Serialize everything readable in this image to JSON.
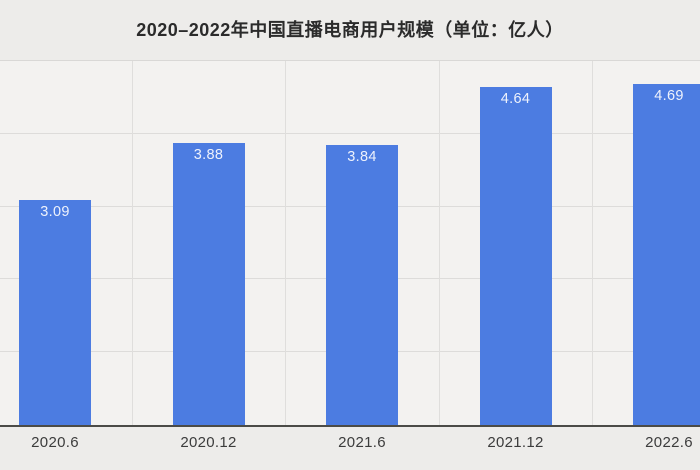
{
  "chart_data": {
    "type": "bar",
    "title": "2020–2022年中国直播电商用户规模（单位：亿人）",
    "unit": "亿人",
    "categories": [
      "2020.6",
      "2020.12",
      "2021.6",
      "2021.12",
      "2022.6"
    ],
    "values": [
      3.09,
      3.88,
      3.84,
      4.64,
      4.69
    ],
    "value_labels": [
      "3.09",
      "3.88",
      "3.84",
      "4.64",
      "4.69"
    ],
    "xlabel": "",
    "ylabel": "",
    "ylim": [
      0,
      5
    ],
    "grid": true,
    "gridline_step": 1,
    "legend": "none",
    "colors": {
      "bar": "#4c7ce1",
      "bar_value_label": "#eef2fc",
      "outer_background": "#edecea",
      "plot_background": "#f3f2f0",
      "gridline": "#dddcda",
      "axis_line": "#4b4b47",
      "title_text": "#2b2b2b",
      "tick_label_text": "#3c3c3c"
    }
  }
}
